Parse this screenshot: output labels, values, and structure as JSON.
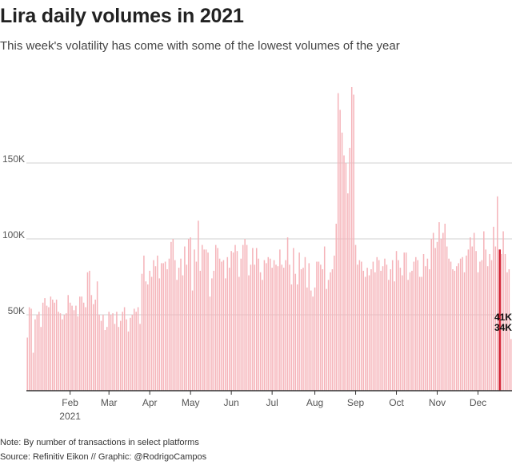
{
  "title": "Lira daily volumes in 2021",
  "subtitle": "This week's volatility has come with some of the lowest volumes of the year",
  "footer": {
    "note": "Note: By number of transactions in select platforms",
    "source": "Source: Refinitiv Eikon // Graphic: @RodrigoCampos"
  },
  "colors": {
    "bar": "#f5b3b9",
    "highlight": "#d11d2f",
    "grid": "#d0d0d0",
    "axis": "#333333"
  },
  "chart_data": {
    "type": "bar",
    "title": "Lira daily volumes in 2021",
    "xlabel": "",
    "ylabel": "",
    "ylim": [
      0,
      200000
    ],
    "y_ticks": [
      {
        "value": 50000,
        "label": "50K"
      },
      {
        "value": 100000,
        "label": "100K"
      },
      {
        "value": 150000,
        "label": "150K"
      }
    ],
    "x_ticks": [
      {
        "index": 22,
        "label": "Feb",
        "sublabel": "2021"
      },
      {
        "index": 42,
        "label": "Mar"
      },
      {
        "index": 63,
        "label": "Apr"
      },
      {
        "index": 84,
        "label": "May"
      },
      {
        "index": 105,
        "label": "Jun"
      },
      {
        "index": 126,
        "label": "Jul"
      },
      {
        "index": 148,
        "label": "Aug"
      },
      {
        "index": 169,
        "label": "Sep"
      },
      {
        "index": 190,
        "label": "Oct"
      },
      {
        "index": 211,
        "label": "Nov"
      },
      {
        "index": 232,
        "label": "Dec"
      }
    ],
    "annotations": [
      {
        "label": "41K",
        "value": 41000
      },
      {
        "label": "34K",
        "value": 34000
      }
    ],
    "highlight_index": 243,
    "values": [
      35000,
      55000,
      54000,
      25000,
      47000,
      50000,
      52000,
      42000,
      58000,
      61000,
      56000,
      55000,
      62000,
      60000,
      58000,
      60000,
      52000,
      51000,
      47000,
      50000,
      51000,
      63000,
      58000,
      56000,
      53000,
      56000,
      49000,
      62000,
      62000,
      58000,
      55000,
      78000,
      79000,
      63000,
      57000,
      60000,
      72000,
      50000,
      46000,
      50000,
      40000,
      42000,
      52000,
      50000,
      51000,
      44000,
      52000,
      42000,
      46000,
      52000,
      55000,
      47000,
      39000,
      48000,
      50000,
      54000,
      52000,
      55000,
      44000,
      77000,
      89000,
      72000,
      70000,
      79000,
      75000,
      86000,
      82000,
      89000,
      74000,
      84000,
      84000,
      85000,
      80000,
      87000,
      98000,
      100000,
      86000,
      73000,
      81000,
      87000,
      76000,
      95000,
      83000,
      100000,
      101000,
      66000,
      93000,
      85000,
      112000,
      79000,
      96000,
      93000,
      93000,
      91000,
      62000,
      74000,
      79000,
      96000,
      94000,
      87000,
      85000,
      86000,
      74000,
      88000,
      81000,
      92000,
      91000,
      96000,
      92000,
      75000,
      87000,
      96000,
      100000,
      96000,
      76000,
      83000,
      94000,
      83000,
      94000,
      87000,
      78000,
      73000,
      86000,
      84000,
      88000,
      87000,
      81000,
      86000,
      83000,
      82000,
      93000,
      83000,
      81000,
      86000,
      101000,
      83000,
      70000,
      94000,
      77000,
      70000,
      91000,
      80000,
      81000,
      88000,
      68000,
      84000,
      66000,
      62000,
      68000,
      85000,
      85000,
      83000,
      80000,
      95000,
      67000,
      73000,
      78000,
      80000,
      89000,
      110000,
      196000,
      185000,
      170000,
      155000,
      150000,
      130000,
      160000,
      200000,
      195000,
      96000,
      83000,
      86000,
      85000,
      79000,
      75000,
      81000,
      76000,
      80000,
      85000,
      78000,
      88000,
      86000,
      79000,
      82000,
      87000,
      83000,
      73000,
      80000,
      86000,
      72000,
      92000,
      86000,
      81000,
      76000,
      91000,
      91000,
      73000,
      78000,
      79000,
      85000,
      88000,
      86000,
      75000,
      75000,
      90000,
      82000,
      87000,
      80000,
      100000,
      104000,
      94000,
      98000,
      111000,
      100000,
      104000,
      110000,
      95000,
      87000,
      85000,
      80000,
      79000,
      82000,
      84000,
      87000,
      88000,
      78000,
      89000,
      93000,
      101000,
      95000,
      104000,
      92000,
      78000,
      85000,
      86000,
      105000,
      93000,
      82000,
      90000,
      86000,
      108000,
      95000,
      128000,
      93000,
      90000,
      105000,
      90000,
      78000,
      80000,
      34000
    ]
  }
}
